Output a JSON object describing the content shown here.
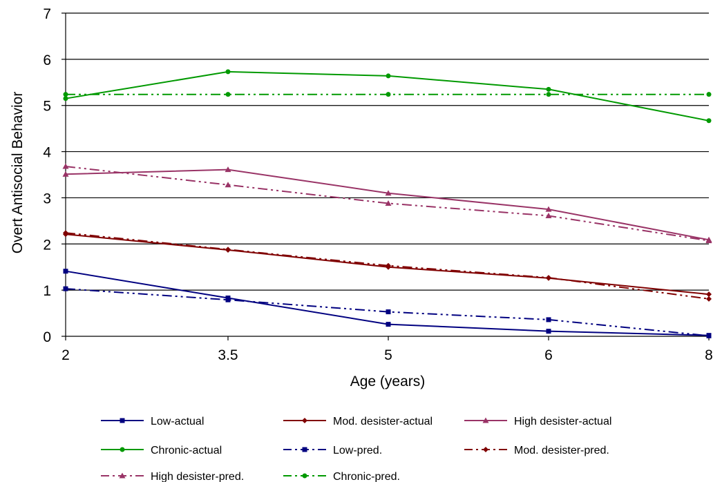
{
  "chart_data": {
    "type": "line",
    "xlabel": "Age (years)",
    "ylabel": "Overt Antisocial Behavior",
    "categories": [
      "2",
      "3.5",
      "5",
      "6",
      "8"
    ],
    "ylim": [
      0,
      7
    ],
    "yticks": [
      "0",
      "1",
      "2",
      "3",
      "4",
      "5",
      "6",
      "7"
    ],
    "grid": "horizontal",
    "legend": "bottom",
    "series": [
      {
        "name": "Low-actual",
        "values": [
          1.41,
          0.83,
          0.26,
          0.11,
          0.02
        ],
        "color": "#000080",
        "dash": "solid",
        "marker": "square"
      },
      {
        "name": "Mod. desister-actual",
        "values": [
          2.21,
          1.87,
          1.5,
          1.26,
          0.91
        ],
        "color": "#800000",
        "dash": "solid",
        "marker": "diamond"
      },
      {
        "name": "High desister-actual",
        "values": [
          3.51,
          3.61,
          3.1,
          2.75,
          2.09
        ],
        "color": "#993366",
        "dash": "solid",
        "marker": "triangle"
      },
      {
        "name": "Chronic-actual",
        "values": [
          5.15,
          5.73,
          5.64,
          5.35,
          4.67
        ],
        "color": "#009900",
        "dash": "solid",
        "marker": "circle"
      },
      {
        "name": "Low-pred.",
        "values": [
          1.03,
          0.79,
          0.53,
          0.36,
          0.01
        ],
        "color": "#000080",
        "dash": "dashdot",
        "marker": "square"
      },
      {
        "name": "Mod. desister-pred.",
        "values": [
          2.24,
          1.88,
          1.53,
          1.27,
          0.81
        ],
        "color": "#800000",
        "dash": "dashdot",
        "marker": "diamond"
      },
      {
        "name": "High desister-pred.",
        "values": [
          3.68,
          3.28,
          2.88,
          2.61,
          2.07
        ],
        "color": "#993366",
        "dash": "dashdot",
        "marker": "triangle"
      },
      {
        "name": "Chronic-pred.",
        "values": [
          5.24,
          5.24,
          5.24,
          5.24,
          5.24
        ],
        "color": "#009900",
        "dash": "dashdot",
        "marker": "circle"
      }
    ]
  }
}
